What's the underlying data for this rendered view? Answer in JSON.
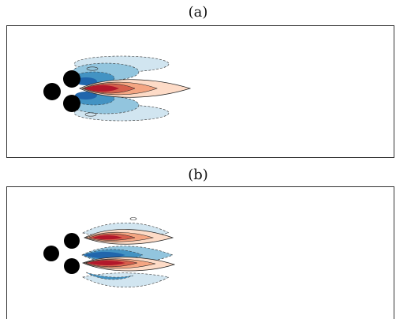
{
  "figure": {
    "panels": [
      {
        "label": "(a)"
      },
      {
        "label": "(b)"
      }
    ],
    "colors": {
      "positive_deep": "#b2182b",
      "positive_mid": "#d6604d",
      "positive_light": "#f4a582",
      "positive_pale": "#fddbc7",
      "negative_deep": "#2166ac",
      "negative_mid": "#4393c3",
      "negative_light": "#92c5de",
      "negative_pale": "#d1e5f0",
      "cylinder": "#000000",
      "frame": "#333333"
    }
  }
}
